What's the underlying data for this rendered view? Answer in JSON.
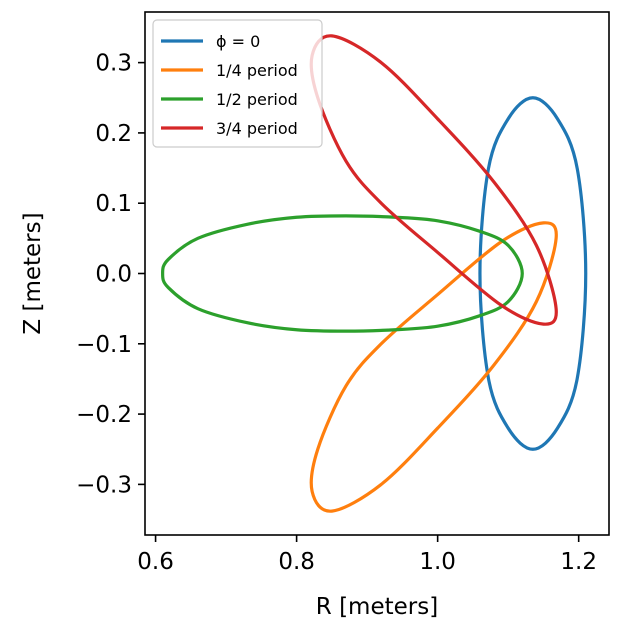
{
  "chart_data": {
    "type": "line",
    "xlabel": "R [meters]",
    "ylabel": "Z [meters]",
    "xlim": [
      0.585,
      1.243
    ],
    "ylim": [
      -0.372,
      0.372
    ],
    "xticks": [
      0.6,
      0.8,
      1.0,
      1.2
    ],
    "xtick_labels": [
      "0.6",
      "0.8",
      "1.0",
      "1.2"
    ],
    "yticks": [
      -0.3,
      -0.2,
      -0.1,
      0.0,
      0.1,
      0.2,
      0.3
    ],
    "ytick_labels": [
      "−0.3",
      "−0.2",
      "−0.1",
      "0.0",
      "0.1",
      "0.2",
      "0.3"
    ],
    "grid": false,
    "legend_position": "upper-left",
    "series": [
      {
        "name": "ϕ = 0",
        "color": "#1f77b4",
        "points": [
          [
            1.21,
            0.0
          ],
          [
            1.198,
            0.149
          ],
          [
            1.17,
            0.22
          ],
          [
            1.135,
            0.25
          ],
          [
            1.1,
            0.22
          ],
          [
            1.072,
            0.149
          ],
          [
            1.06,
            0.0
          ],
          [
            1.072,
            -0.149
          ],
          [
            1.1,
            -0.22
          ],
          [
            1.135,
            -0.25
          ],
          [
            1.17,
            -0.22
          ],
          [
            1.198,
            -0.149
          ],
          [
            1.21,
            0.0
          ]
        ]
      },
      {
        "name": "1/4 period",
        "color": "#ff7f0e",
        "points": [
          [
            1.168,
            0.05
          ],
          [
            1.15,
            0.072
          ],
          [
            1.09,
            0.045
          ],
          [
            1.0,
            -0.03
          ],
          [
            0.92,
            -0.1
          ],
          [
            0.87,
            -0.16
          ],
          [
            0.83,
            -0.25
          ],
          [
            0.822,
            -0.31
          ],
          [
            0.85,
            -0.338
          ],
          [
            0.92,
            -0.3
          ],
          [
            1.0,
            -0.22
          ],
          [
            1.08,
            -0.13
          ],
          [
            1.14,
            -0.04
          ],
          [
            1.168,
            0.05
          ]
        ]
      },
      {
        "name": "1/2 period",
        "color": "#2ca02c",
        "points": [
          [
            1.12,
            0.0
          ],
          [
            1.1,
            0.04
          ],
          [
            1.06,
            0.06
          ],
          [
            1.0,
            0.075
          ],
          [
            0.94,
            0.08
          ],
          [
            0.87,
            0.082
          ],
          [
            0.8,
            0.08
          ],
          [
            0.73,
            0.07
          ],
          [
            0.66,
            0.05
          ],
          [
            0.618,
            0.02
          ],
          [
            0.61,
            0.0
          ],
          [
            0.618,
            -0.02
          ],
          [
            0.66,
            -0.05
          ],
          [
            0.73,
            -0.07
          ],
          [
            0.8,
            -0.08
          ],
          [
            0.87,
            -0.082
          ],
          [
            0.94,
            -0.08
          ],
          [
            1.0,
            -0.075
          ],
          [
            1.06,
            -0.06
          ],
          [
            1.1,
            -0.04
          ],
          [
            1.12,
            0.0
          ]
        ]
      },
      {
        "name": "3/4 period",
        "color": "#d62728",
        "points": [
          [
            0.822,
            0.31
          ],
          [
            0.85,
            0.338
          ],
          [
            0.92,
            0.3
          ],
          [
            1.0,
            0.22
          ],
          [
            1.08,
            0.13
          ],
          [
            1.14,
            0.04
          ],
          [
            1.168,
            -0.05
          ],
          [
            1.15,
            -0.072
          ],
          [
            1.09,
            -0.045
          ],
          [
            1.0,
            0.03
          ],
          [
            0.92,
            0.1
          ],
          [
            0.87,
            0.16
          ],
          [
            0.83,
            0.25
          ],
          [
            0.822,
            0.31
          ]
        ]
      }
    ]
  }
}
